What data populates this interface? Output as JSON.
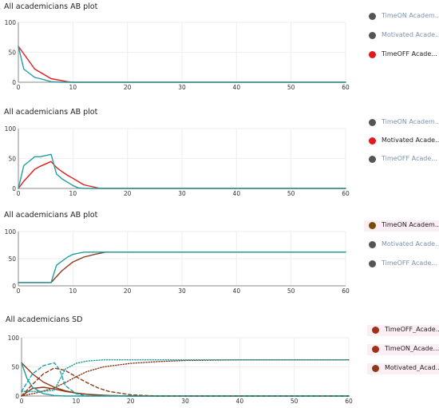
{
  "chart_data": [
    {
      "type": "line",
      "title": "All academicians AB plot",
      "xlim": [
        0,
        60
      ],
      "ylim": [
        0,
        100
      ],
      "xticks": [
        0,
        10,
        20,
        30,
        40,
        50,
        60
      ],
      "yticks": [
        0,
        50,
        100
      ],
      "grid": true,
      "legend_position": "right",
      "legend": [
        {
          "label": "TimeON Academ...",
          "color": "#555555",
          "active": false
        },
        {
          "label": "Motivated Acade...",
          "color": "#555555",
          "active": false
        },
        {
          "label": "TimeOFF Acade...",
          "color": "#e31a1c",
          "active": true
        }
      ],
      "series": [
        {
          "color": "#e31a1c",
          "style": "solid",
          "x": [
            0,
            3,
            6,
            9,
            10,
            60
          ],
          "y": [
            60,
            22,
            6,
            1,
            0,
            0
          ]
        },
        {
          "color": "#1f9e9e",
          "style": "solid",
          "x": [
            0,
            1,
            3,
            4,
            6,
            8,
            9,
            60
          ],
          "y": [
            60,
            22,
            8,
            6,
            1,
            0,
            0,
            0
          ]
        }
      ]
    },
    {
      "type": "line",
      "title": "All academicians AB plot",
      "xlim": [
        0,
        60
      ],
      "ylim": [
        0,
        100
      ],
      "xticks": [
        0,
        10,
        20,
        30,
        40,
        50,
        60
      ],
      "yticks": [
        0,
        50,
        100
      ],
      "grid": true,
      "legend_position": "right",
      "legend": [
        {
          "label": "TimeON Academ...",
          "color": "#555555",
          "active": false
        },
        {
          "label": "Motivated Acade...",
          "color": "#e31a1c",
          "active": true
        },
        {
          "label": "TimeOFF Acade...",
          "color": "#555555",
          "active": false
        }
      ],
      "series": [
        {
          "color": "#e31a1c",
          "style": "solid",
          "x": [
            0,
            1,
            3,
            4,
            6,
            7,
            8,
            9,
            10,
            12,
            14,
            15,
            60
          ],
          "y": [
            0,
            12,
            32,
            37,
            45,
            35,
            28,
            22,
            17,
            6,
            2,
            0,
            0
          ]
        },
        {
          "color": "#1f9e9e",
          "style": "solid",
          "x": [
            0,
            1,
            3,
            4,
            6,
            7,
            8,
            10,
            11,
            12,
            60
          ],
          "y": [
            0,
            38,
            53,
            53,
            57,
            24,
            16,
            5,
            1,
            0,
            0
          ]
        }
      ]
    },
    {
      "type": "line",
      "title": "All academicians AB plot",
      "xlim": [
        0,
        60
      ],
      "ylim": [
        0,
        100
      ],
      "xticks": [
        0,
        10,
        20,
        30,
        40,
        50,
        60
      ],
      "yticks": [
        0,
        50,
        100
      ],
      "grid": true,
      "legend_position": "right",
      "legend": [
        {
          "label": "TimeON Academ...",
          "color": "#7a4a0a",
          "active": true
        },
        {
          "label": "Motivated Acade...",
          "color": "#555555",
          "active": false
        },
        {
          "label": "TimeOFF Acade...",
          "color": "#555555",
          "active": false
        }
      ],
      "series": [
        {
          "color": "#8b3a1a",
          "style": "solid",
          "x": [
            0,
            6,
            8,
            10,
            12,
            14,
            16,
            60
          ],
          "y": [
            6,
            6,
            28,
            44,
            53,
            58,
            62,
            62
          ]
        },
        {
          "color": "#1f9e9e",
          "style": "solid",
          "x": [
            0,
            6,
            7,
            9,
            10,
            12,
            60
          ],
          "y": [
            6,
            6,
            38,
            53,
            58,
            62,
            62
          ]
        }
      ]
    },
    {
      "type": "line",
      "title": "All academicians SD",
      "xlim": [
        0,
        60
      ],
      "ylim": [
        0,
        100
      ],
      "xticks": [
        0,
        10,
        20,
        30,
        40,
        50,
        60
      ],
      "yticks": [
        0,
        50,
        100
      ],
      "grid": true,
      "legend_position": "right",
      "legend": [
        {
          "label": "TimeOFF_Acade...",
          "color": "#a0301a",
          "active": true
        },
        {
          "label": "TimeON_Acade...",
          "color": "#a0301a",
          "active": true
        },
        {
          "label": "Motivated_Acad...",
          "color": "#8b3a1a",
          "active": true
        }
      ],
      "series": [
        {
          "color": "#8b3a1a",
          "style": "solid",
          "x": [
            0,
            2,
            4,
            6,
            8,
            10,
            14,
            20,
            60
          ],
          "y": [
            57,
            38,
            24,
            15,
            9,
            5,
            1,
            0,
            0
          ]
        },
        {
          "color": "#8b3a1a",
          "style": "solid",
          "x": [
            0,
            2,
            4,
            6,
            8,
            10,
            12,
            16,
            20,
            60
          ],
          "y": [
            0,
            13,
            15,
            12,
            8,
            5,
            3,
            1,
            0,
            0
          ]
        },
        {
          "color": "#1f9e9e",
          "style": "solid",
          "x": [
            0,
            1,
            2,
            4,
            6,
            8,
            60
          ],
          "y": [
            57,
            30,
            15,
            4,
            1,
            0,
            0
          ]
        },
        {
          "color": "#8b3a1a",
          "style": "dotted",
          "x": [
            0,
            3,
            6,
            8,
            10,
            12,
            15,
            20,
            25,
            30,
            40,
            60
          ],
          "y": [
            0,
            6,
            14,
            23,
            33,
            42,
            50,
            56,
            59,
            61,
            62,
            62
          ]
        },
        {
          "color": "#8b3a1a",
          "style": "dashed",
          "x": [
            0,
            2,
            4,
            6,
            8,
            10,
            12,
            14,
            16,
            20,
            25,
            60
          ],
          "y": [
            0,
            20,
            38,
            48,
            44,
            33,
            23,
            14,
            8,
            2,
            0,
            0
          ]
        },
        {
          "color": "#1f9e9e",
          "style": "dotted",
          "x": [
            0,
            4,
            6,
            7,
            8,
            10,
            12,
            15,
            60
          ],
          "y": [
            8,
            8,
            10,
            28,
            46,
            56,
            60,
            62,
            62
          ]
        },
        {
          "color": "#1f9e9e",
          "style": "dashed",
          "x": [
            0,
            2,
            4,
            6,
            7,
            8,
            10,
            12,
            60
          ],
          "y": [
            8,
            38,
            52,
            57,
            45,
            18,
            4,
            0,
            0
          ]
        }
      ]
    }
  ]
}
